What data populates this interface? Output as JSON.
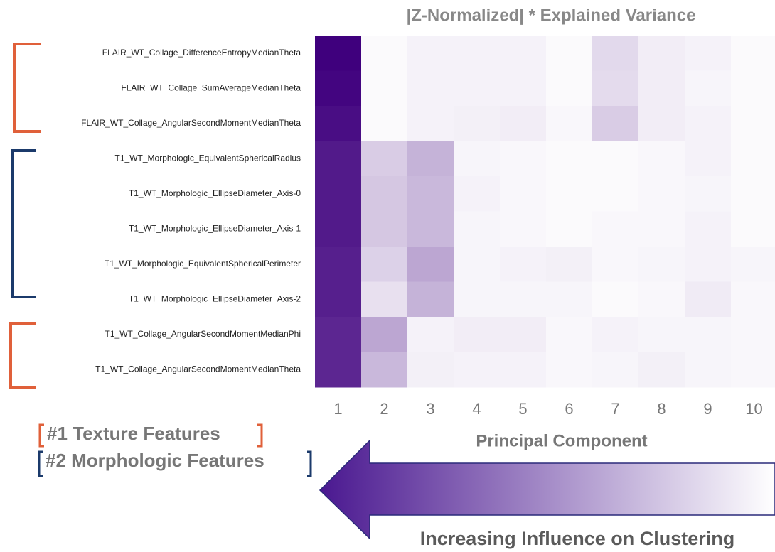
{
  "chart_data": {
    "type": "heatmap",
    "title": "|Z-Normalized| * Explained Variance",
    "xlabel": "Principal Component",
    "x": [
      1,
      2,
      3,
      4,
      5,
      6,
      7,
      8,
      9,
      10
    ],
    "rows": [
      "FLAIR_WT_Collage_DifferenceEntropyMedianTheta",
      "FLAIR_WT_Collage_SumAverageMedianTheta",
      "FLAIR_WT_Collage_AngularSecondMomentMedianTheta",
      "T1_WT_Morphologic_EquivalentSphericalRadius",
      "T1_WT_Morphologic_EllipseDiameter_Axis-0",
      "T1_WT_Morphologic_EllipseDiameter_Axis-1",
      "T1_WT_Morphologic_EquivalentSphericalPerimeter",
      "T1_WT_Morphologic_EllipseDiameter_Axis-2",
      "T1_WT_Collage_AngularSecondMomentMedianPhi",
      "T1_WT_Collage_AngularSecondMomentMedianTheta"
    ],
    "values": [
      [
        1.0,
        0.02,
        0.05,
        0.05,
        0.05,
        0.02,
        0.15,
        0.07,
        0.05,
        0.02
      ],
      [
        0.98,
        0.02,
        0.05,
        0.05,
        0.05,
        0.02,
        0.14,
        0.07,
        0.04,
        0.02
      ],
      [
        0.95,
        0.02,
        0.05,
        0.06,
        0.07,
        0.03,
        0.2,
        0.07,
        0.05,
        0.02
      ],
      [
        0.9,
        0.2,
        0.3,
        0.04,
        0.03,
        0.02,
        0.02,
        0.03,
        0.05,
        0.02
      ],
      [
        0.9,
        0.22,
        0.28,
        0.05,
        0.03,
        0.02,
        0.02,
        0.03,
        0.04,
        0.02
      ],
      [
        0.9,
        0.22,
        0.28,
        0.04,
        0.03,
        0.02,
        0.03,
        0.03,
        0.05,
        0.02
      ],
      [
        0.88,
        0.18,
        0.35,
        0.04,
        0.05,
        0.06,
        0.03,
        0.04,
        0.05,
        0.04
      ],
      [
        0.88,
        0.12,
        0.3,
        0.04,
        0.04,
        0.04,
        0.02,
        0.03,
        0.08,
        0.03
      ],
      [
        0.85,
        0.35,
        0.05,
        0.07,
        0.07,
        0.03,
        0.05,
        0.04,
        0.04,
        0.03
      ],
      [
        0.85,
        0.28,
        0.06,
        0.05,
        0.05,
        0.03,
        0.04,
        0.06,
        0.04,
        0.03
      ]
    ],
    "colormap": [
      "#ffffff",
      "#3f007d"
    ],
    "legend": [
      "#1 Texture Features",
      "#2 Morphologic Features"
    ],
    "annotation": "Increasing Influence on Clustering"
  }
}
